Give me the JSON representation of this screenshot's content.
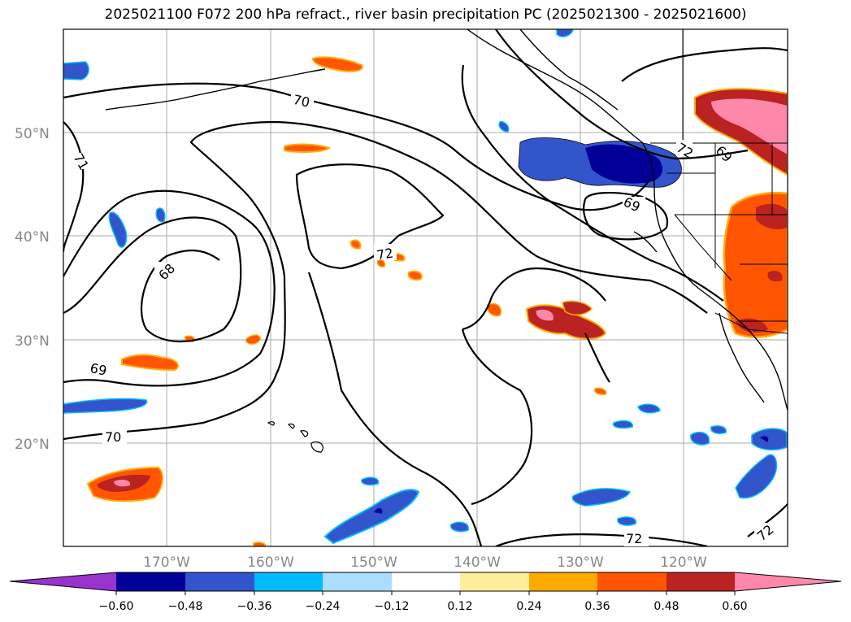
{
  "title": "2025021100 F072 200 hPa refract., river basin precipitation PC (2025021300 - 2025021600)",
  "lat_labels": [
    "50°N",
    "40°N",
    "30°N",
    "20°N"
  ],
  "lon_labels": [
    "170°W",
    "160°W",
    "150°W",
    "140°W",
    "130°W",
    "120°W"
  ],
  "contour_labels": [
    "70",
    "71",
    "68",
    "72",
    "69",
    "69",
    "70",
    "72",
    "72",
    "72",
    "69"
  ],
  "colorbar": {
    "ticks": [
      "−0.60",
      "−0.48",
      "−0.36",
      "−0.24",
      "−0.12",
      "0.12",
      "0.24",
      "0.36",
      "0.48",
      "0.60"
    ],
    "colors": [
      "#9933cc",
      "#000099",
      "#3355cc",
      "#00bbff",
      "#aaddff",
      "#ffffff",
      "#ffee99",
      "#ffaa00",
      "#ff5500",
      "#bb2222",
      "#ff88aa"
    ]
  },
  "colors": {
    "strong_negative": "#000099",
    "negative": "#3355cc",
    "weak_negative": "#00bbff",
    "positive": "#ff5500",
    "strong_positive": "#bb2222",
    "max_positive": "#ff88aa"
  }
}
